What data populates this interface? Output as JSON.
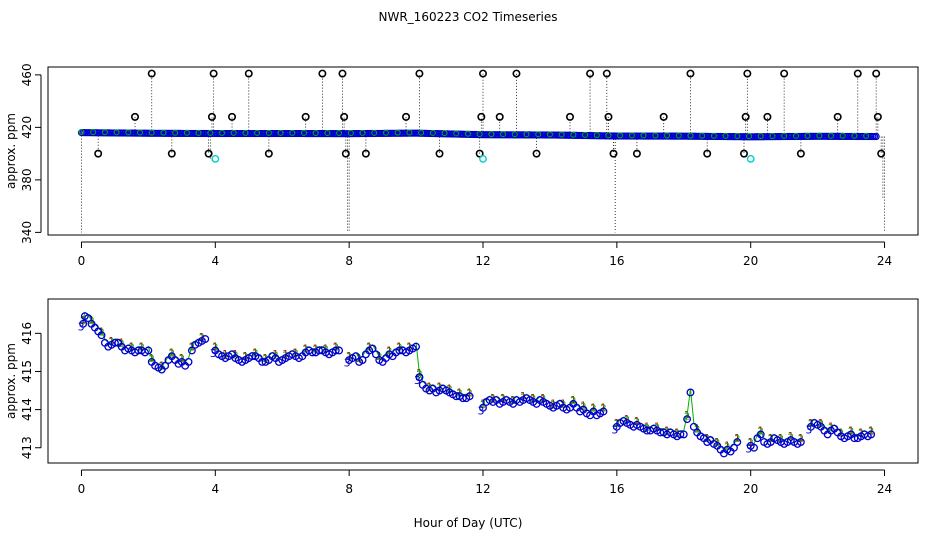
{
  "title": "NWR_160223  CO2 Timeseries",
  "xlabel": "Hour of Day (UTC)",
  "colors": {
    "series1": "#cc0000",
    "series2": "#00b000",
    "series3": "#0000cc",
    "outlier": "#000000",
    "flag": "#00cccc",
    "bg": "#ffffff",
    "frame": "#000000"
  },
  "chart_data": [
    {
      "type": "scatter",
      "name": "top-panel",
      "ylabel": "approx. ppm",
      "xlim": [
        -1,
        25
      ],
      "ylim": [
        338,
        466
      ],
      "xticks": [
        0,
        4,
        8,
        12,
        16,
        20,
        24
      ],
      "xtick_labels": [
        "0",
        "4",
        "8",
        "12",
        "16",
        "20",
        "24"
      ],
      "yticks": [
        340,
        380,
        420,
        460
      ],
      "ytick_labels": [
        "340",
        "380",
        "420",
        "460"
      ],
      "baseline_series": {
        "x": [
          0,
          2,
          4,
          6,
          8,
          10,
          12,
          14,
          16,
          18,
          20,
          22,
          23.8
        ],
        "y": [
          416,
          415.5,
          415.3,
          415.3,
          415.2,
          415.6,
          414.4,
          414.2,
          413.4,
          413.3,
          412.8,
          413.2,
          413.0
        ]
      },
      "outliers": {
        "x": [
          0.5,
          1.6,
          2.1,
          2.7,
          3.8,
          3.9,
          3.95,
          4.5,
          5.0,
          5.6,
          6.7,
          7.2,
          7.8,
          7.85,
          7.9,
          8.5,
          9.7,
          10.1,
          10.7,
          11.9,
          11.95,
          12.0,
          12.5,
          13.0,
          13.6,
          14.6,
          15.2,
          15.7,
          15.75,
          15.9,
          16.6,
          17.4,
          18.2,
          18.7,
          19.8,
          19.85,
          19.9,
          20.5,
          21.0,
          21.5,
          22.6,
          23.2,
          23.75,
          23.8,
          23.9
        ],
        "y": [
          400,
          428,
          461,
          400,
          400,
          428,
          461,
          428,
          461,
          400,
          428,
          461,
          461,
          428,
          400,
          400,
          428,
          461,
          400,
          400,
          428,
          461,
          428,
          461,
          400,
          428,
          461,
          461,
          428,
          400,
          400,
          428,
          461,
          400,
          400,
          428,
          461,
          428,
          461,
          400,
          428,
          461,
          461,
          428,
          400
        ]
      },
      "flags": {
        "x": [
          4.0,
          12.0,
          20.0
        ],
        "y": [
          396,
          396,
          396
        ]
      },
      "dropouts": {
        "x": [
          0.0,
          3.85,
          7.95,
          8.0,
          15.95,
          23.95,
          24.0
        ],
        "y": [
          340,
          395,
          340,
          340,
          340,
          365,
          340
        ]
      }
    },
    {
      "type": "scatter",
      "name": "bottom-panel",
      "ylabel": "approx. ppm",
      "xlim": [
        -1,
        25
      ],
      "ylim": [
        412.6,
        416.9
      ],
      "xticks": [
        0,
        4,
        8,
        12,
        16,
        20,
        24
      ],
      "xtick_labels": [
        "0",
        "4",
        "8",
        "12",
        "16",
        "20",
        "24"
      ],
      "yticks": [
        413,
        414,
        415,
        416
      ],
      "ytick_labels": [
        "413",
        "414",
        "415",
        "416"
      ],
      "segments": [
        {
          "x": [
            0.05,
            0.1,
            0.2,
            0.3,
            0.4,
            0.5,
            0.6,
            0.7,
            0.8,
            0.9,
            1.0,
            1.1,
            1.2,
            1.3,
            1.4,
            1.5,
            1.6,
            1.7,
            1.8,
            1.9,
            2.0,
            2.1,
            2.2,
            2.3,
            2.4,
            2.5,
            2.6,
            2.7,
            2.8,
            2.9,
            3.0,
            3.1,
            3.2,
            3.3,
            3.4,
            3.5,
            3.6,
            3.7
          ],
          "y": [
            416.3,
            416.5,
            416.45,
            416.3,
            416.2,
            416.1,
            416.0,
            415.8,
            415.7,
            415.75,
            415.8,
            415.8,
            415.7,
            415.6,
            415.65,
            415.6,
            415.55,
            415.6,
            415.6,
            415.55,
            415.6,
            415.3,
            415.2,
            415.15,
            415.1,
            415.2,
            415.35,
            415.45,
            415.35,
            415.25,
            415.3,
            415.2,
            415.3,
            415.6,
            415.75,
            415.8,
            415.85,
            415.9
          ]
        },
        {
          "x": [
            4.0,
            4.1,
            4.2,
            4.3,
            4.4,
            4.5,
            4.6,
            4.7,
            4.8,
            4.9,
            5.0,
            5.1,
            5.2,
            5.3,
            5.4,
            5.5,
            5.6,
            5.7,
            5.8,
            5.9,
            6.0,
            6.1,
            6.2,
            6.3,
            6.4,
            6.5,
            6.6,
            6.7,
            6.8,
            6.9,
            7.0,
            7.1,
            7.2,
            7.3,
            7.4,
            7.5,
            7.6,
            7.7
          ],
          "y": [
            415.6,
            415.5,
            415.45,
            415.4,
            415.45,
            415.5,
            415.4,
            415.35,
            415.3,
            415.35,
            415.4,
            415.45,
            415.45,
            415.4,
            415.3,
            415.3,
            415.35,
            415.45,
            415.4,
            415.3,
            415.35,
            415.4,
            415.45,
            415.5,
            415.45,
            415.4,
            415.45,
            415.55,
            415.6,
            415.55,
            415.55,
            415.6,
            415.6,
            415.55,
            415.5,
            415.55,
            415.6,
            415.6
          ]
        },
        {
          "x": [
            8.0,
            8.1,
            8.2,
            8.3,
            8.4,
            8.5,
            8.6,
            8.7,
            8.8,
            8.9,
            9.0,
            9.1,
            9.2,
            9.3,
            9.4,
            9.5,
            9.6,
            9.7,
            9.8,
            9.9,
            10.0,
            10.1
          ],
          "y": [
            415.35,
            415.4,
            415.45,
            415.3,
            415.35,
            415.5,
            415.6,
            415.65,
            415.5,
            415.35,
            415.3,
            415.4,
            415.5,
            415.45,
            415.55,
            415.6,
            415.6,
            415.55,
            415.6,
            415.65,
            415.7,
            414.9
          ]
        },
        {
          "x": [
            10.1,
            10.2,
            10.3,
            10.4,
            10.5,
            10.6,
            10.7,
            10.8,
            10.9,
            11.0,
            11.1,
            11.2,
            11.3,
            11.4,
            11.5,
            11.6
          ],
          "y": [
            414.9,
            414.7,
            414.6,
            414.55,
            414.6,
            414.5,
            414.55,
            414.6,
            414.55,
            414.5,
            414.45,
            414.4,
            414.4,
            414.35,
            414.35,
            414.4
          ]
        },
        {
          "x": [
            12.0,
            12.1,
            12.2,
            12.3,
            12.4,
            12.5,
            12.6,
            12.7,
            12.8,
            12.9,
            13.0,
            13.1,
            13.2,
            13.3,
            13.4,
            13.5,
            13.6,
            13.7,
            13.8,
            13.9,
            14.0,
            14.1,
            14.2,
            14.3,
            14.4,
            14.5,
            14.6,
            14.7,
            14.8,
            14.9,
            15.0,
            15.1,
            15.2,
            15.3,
            15.4,
            15.5,
            15.6
          ],
          "y": [
            414.1,
            414.25,
            414.3,
            414.25,
            414.3,
            414.2,
            414.25,
            414.3,
            414.25,
            414.2,
            414.3,
            414.25,
            414.3,
            414.35,
            414.3,
            414.25,
            414.2,
            414.3,
            414.25,
            414.2,
            414.15,
            414.1,
            414.15,
            414.2,
            414.1,
            414.05,
            414.1,
            414.2,
            414.1,
            414.0,
            414.05,
            413.95,
            413.9,
            414.0,
            413.9,
            413.95,
            414.0
          ]
        },
        {
          "x": [
            16.0,
            16.1,
            16.2,
            16.3,
            16.4,
            16.5,
            16.6,
            16.7,
            16.8,
            16.9,
            17.0,
            17.1,
            17.2,
            17.3,
            17.4,
            17.5,
            17.6,
            17.7,
            17.8,
            17.9,
            18.0,
            18.1,
            18.2,
            18.3,
            18.4,
            18.5,
            18.6,
            18.7,
            18.8,
            18.9,
            19.0,
            19.1,
            19.2,
            19.3,
            19.4,
            19.5,
            19.6
          ],
          "y": [
            413.6,
            413.7,
            413.75,
            413.7,
            413.65,
            413.6,
            413.65,
            413.6,
            413.55,
            413.5,
            413.5,
            413.55,
            413.5,
            413.45,
            413.45,
            413.4,
            413.45,
            413.4,
            413.35,
            413.4,
            413.4,
            413.8,
            414.5,
            413.6,
            413.45,
            413.35,
            413.3,
            413.2,
            413.25,
            413.15,
            413.1,
            413.0,
            412.9,
            413.0,
            412.95,
            413.05,
            413.2
          ]
        },
        {
          "x": [
            20.0,
            20.1,
            20.2,
            20.3,
            20.4,
            20.5,
            20.6,
            20.7,
            20.8,
            20.9,
            21.0,
            21.1,
            21.2,
            21.3,
            21.4,
            21.5
          ],
          "y": [
            413.1,
            413.05,
            413.3,
            413.4,
            413.2,
            413.15,
            413.2,
            413.3,
            413.25,
            413.2,
            413.15,
            413.2,
            413.25,
            413.2,
            413.15,
            413.2
          ]
        },
        {
          "x": [
            21.8,
            21.9,
            22.0,
            22.1,
            22.2,
            22.3,
            22.4,
            22.5,
            22.6,
            22.7,
            22.8,
            22.9,
            23.0,
            23.1,
            23.2,
            23.3,
            23.4,
            23.5,
            23.6
          ],
          "y": [
            413.6,
            413.7,
            413.65,
            413.6,
            413.5,
            413.4,
            413.5,
            413.55,
            413.45,
            413.35,
            413.3,
            413.35,
            413.4,
            413.3,
            413.3,
            413.35,
            413.4,
            413.35,
            413.4
          ]
        }
      ],
      "series": [
        {
          "name": "1",
          "offset": 0.08
        },
        {
          "name": "2",
          "offset": 0.05
        },
        {
          "name": "3",
          "offset": -0.05
        }
      ]
    }
  ]
}
